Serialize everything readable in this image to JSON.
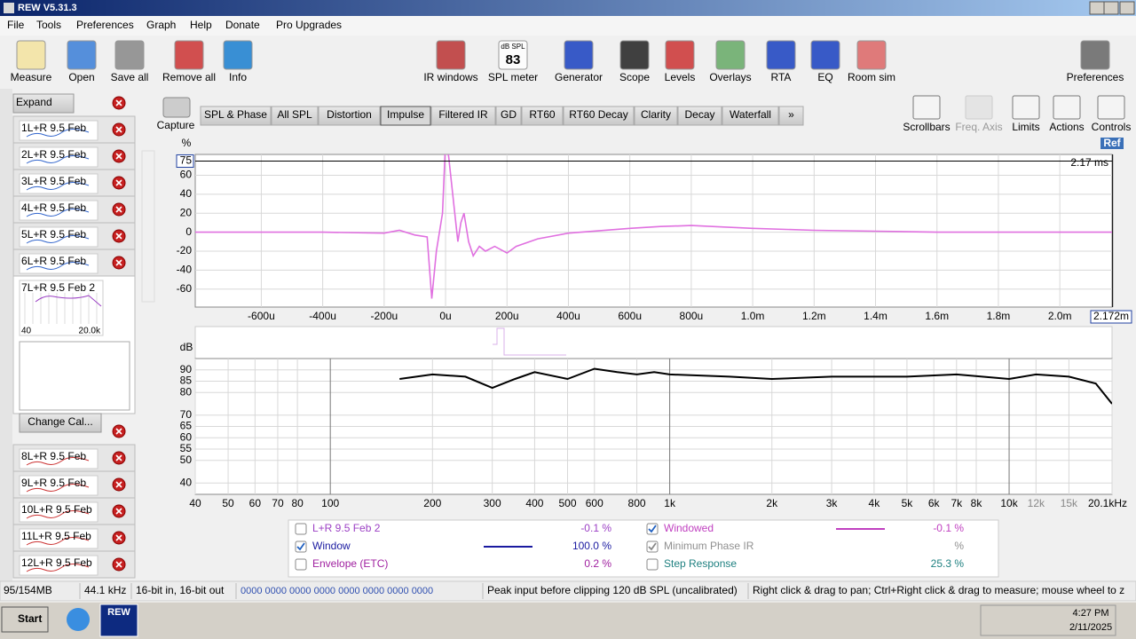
{
  "window": {
    "title": "REW V5.31.3"
  },
  "menu": [
    "File",
    "Tools",
    "Preferences",
    "Graph",
    "Help",
    "Donate",
    "Pro Upgrades"
  ],
  "toolbar": [
    "Measure",
    "Open",
    "Save all",
    "Remove all",
    "Info",
    "IR windows",
    "SPL meter",
    "Generator",
    "Scope",
    "Levels",
    "Overlays",
    "RTA",
    "EQ",
    "Room sim",
    "Preferences"
  ],
  "spl_meter": {
    "unit": "dB SPL",
    "reading": 83
  },
  "sidebar": {
    "expand": "Expand",
    "items": [
      {
        "number": 1,
        "name": "L+R 9.5 Feb"
      },
      {
        "number": 2,
        "name": "L+R 9.5 Feb"
      },
      {
        "number": 3,
        "name": "L+R 9.5 Feb"
      },
      {
        "number": 4,
        "name": "L+R 9.5 Feb"
      },
      {
        "number": 5,
        "name": "L+R 9.5 Feb"
      },
      {
        "number": 6,
        "name": "L+R 9.5 Feb"
      }
    ],
    "selected": {
      "number": 7,
      "name": "L+R 9.5 Feb 2",
      "low_label": "40",
      "high_label": "20.0k"
    },
    "change_cal": "Change Cal...",
    "more_items": [
      {
        "number": 8,
        "name": "L+R 9.5 Feb"
      },
      {
        "number": 9,
        "name": "L+R 9.5 Feb"
      },
      {
        "number": 10,
        "name": "L+R 9.5 Feb"
      },
      {
        "number": 11,
        "name": "L+R 9.5 Feb"
      },
      {
        "number": 12,
        "name": "L+R 9.5 Feb"
      }
    ]
  },
  "capture": "Capture",
  "tabs": [
    {
      "label": "SPL & Phase"
    },
    {
      "label": "All SPL"
    },
    {
      "label": "Distortion"
    },
    {
      "label": "Impulse",
      "active": true
    },
    {
      "label": "Filtered IR"
    },
    {
      "label": "GD"
    },
    {
      "label": "RT60"
    },
    {
      "label": "RT60 Decay"
    },
    {
      "label": "Clarity"
    },
    {
      "label": "Decay"
    },
    {
      "label": "Waterfall"
    },
    {
      "label": "»"
    }
  ],
  "right_tools": {
    "items": [
      {
        "label": "Scrollbars"
      },
      {
        "label": "Freq. Axis",
        "disabled": true
      },
      {
        "label": "Limits"
      },
      {
        "label": "Actions"
      },
      {
        "label": "Controls"
      }
    ],
    "ref": "Ref"
  },
  "chart_data": [
    {
      "type": "line",
      "y_label": "%",
      "xscale": "linear",
      "color": "#e070e0",
      "x": [
        -0.815,
        -0.4,
        -0.2,
        -0.15,
        -0.1,
        -0.06,
        -0.045,
        -0.03,
        -0.01,
        0,
        0.01,
        0.03,
        0.04,
        0.05,
        0.06,
        0.075,
        0.09,
        0.11,
        0.13,
        0.16,
        0.2,
        0.23,
        0.3,
        0.4,
        0.6,
        0.7,
        0.8,
        1.0,
        1.2,
        1.4,
        1.6,
        2.17
      ],
      "values": [
        0,
        0,
        -1,
        2,
        -3,
        -5,
        -70,
        -20,
        20,
        95,
        80,
        20,
        -10,
        10,
        20,
        -10,
        -25,
        -15,
        -20,
        -15,
        -22,
        -15,
        -7,
        -1,
        4,
        6,
        7,
        4,
        2,
        1,
        0,
        0
      ],
      "xlim": [
        -0.815,
        2.17
      ],
      "ylim": [
        -79,
        82
      ],
      "yticks": [
        60,
        40,
        20,
        0,
        -20,
        -40,
        -60
      ],
      "xticks": [
        {
          "value": -0.6,
          "label": "-600u"
        },
        {
          "value": -0.4,
          "label": "-400u"
        },
        {
          "value": -0.2,
          "label": "-200u"
        },
        {
          "value": 0,
          "label": "0u"
        },
        {
          "value": 0.2,
          "label": "200u"
        },
        {
          "value": 0.4,
          "label": "400u"
        },
        {
          "value": 0.6,
          "label": "600u"
        },
        {
          "value": 0.8,
          "label": "800u"
        },
        {
          "value": 1.0,
          "label": "1.0m"
        },
        {
          "value": 1.2,
          "label": "1.2m"
        },
        {
          "value": 1.4,
          "label": "1.4m"
        },
        {
          "value": 1.6,
          "label": "1.6m"
        },
        {
          "value": 1.8,
          "label": "1.8m"
        },
        {
          "value": 2.0,
          "label": "2.0m"
        }
      ],
      "y_marker": 75,
      "cursor": {
        "value": 2.172,
        "label": "2.172m"
      },
      "time_label": "2.17 ms",
      "grid": true
    },
    {
      "type": "line",
      "y_label": "dB",
      "xscale": "log",
      "color": "#000000",
      "x": [
        160,
        200,
        250,
        300,
        350,
        400,
        500,
        600,
        700,
        800,
        900,
        1000,
        1500,
        2000,
        3000,
        5000,
        7000,
        10000,
        12000,
        15000,
        18000,
        20100
      ],
      "values": [
        86,
        88,
        87,
        82,
        86,
        89,
        86,
        90.5,
        89,
        88,
        89,
        88,
        87,
        86,
        87,
        87,
        88,
        86,
        88,
        87,
        84,
        75
      ],
      "xlim": [
        40,
        20100
      ],
      "ylim": [
        35,
        95
      ],
      "yticks": [
        40,
        50,
        55,
        60,
        65,
        70,
        80,
        85,
        90
      ],
      "xticks": [
        40,
        50,
        60,
        70,
        80,
        100,
        200,
        300,
        400,
        500,
        600,
        800,
        {
          "value": 1000,
          "label": "1k"
        },
        {
          "value": 2000,
          "label": "2k"
        },
        {
          "value": 3000,
          "label": "3k"
        },
        {
          "value": 4000,
          "label": "4k"
        },
        {
          "value": 5000,
          "label": "5k"
        },
        {
          "value": 6000,
          "label": "6k"
        },
        {
          "value": 7000,
          "label": "7k"
        },
        {
          "value": 8000,
          "label": "8k"
        },
        {
          "value": 10000,
          "label": "10k"
        },
        {
          "value": 12000,
          "label": "12k"
        },
        {
          "value": 15000,
          "label": "15k"
        },
        {
          "value": 20100,
          "label": "20.1kHz"
        }
      ],
      "grid": true
    }
  ],
  "legend": [
    {
      "name": "L+R 9.5 Feb 2",
      "value": "-0.1 %",
      "checked": false,
      "color": "#9b3fc4"
    },
    {
      "name": "Window",
      "value": "100.0 %",
      "checked": true,
      "color": "#1a1aa0",
      "line": true
    },
    {
      "name": "Envelope (ETC)",
      "value": "0.2 %",
      "checked": false,
      "color": "#a020a0"
    },
    {
      "name": "Windowed",
      "value": "-0.1 %",
      "checked": true,
      "color": "#c040c0",
      "line": true
    },
    {
      "name": "Minimum Phase IR",
      "value": "%",
      "checked": true,
      "color": "#909090"
    },
    {
      "name": "Step Response",
      "value": "25.3 %",
      "checked": false,
      "color": "#1f8080"
    }
  ],
  "status_bar": [
    "95/154MB",
    "44.1 kHz",
    "16-bit in, 16-bit out",
    "0000 0000  0000 0000  0000 0000  0000 0000",
    "Peak input before clipping 120 dB SPL (uncalibrated)",
    "Right click & drag to pan; Ctrl+Right click & drag to measure; mouse wheel to z"
  ],
  "taskbar": {
    "start": "Start",
    "app": "REW",
    "time": "4:27 PM",
    "date": "2/11/2025"
  }
}
